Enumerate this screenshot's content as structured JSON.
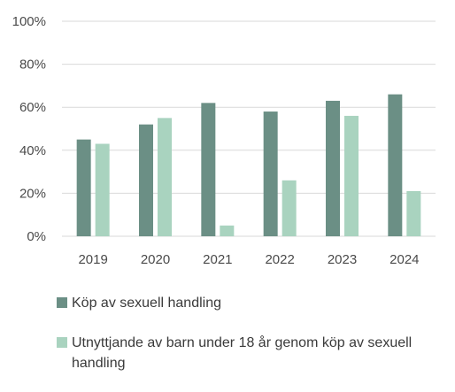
{
  "chart_data": {
    "type": "bar",
    "categories": [
      "2019",
      "2020",
      "2021",
      "2022",
      "2023",
      "2024"
    ],
    "series": [
      {
        "name": "Köp av sexuell handling",
        "values": [
          45,
          52,
          62,
          58,
          63,
          66
        ],
        "color": "#6b8f85"
      },
      {
        "name": "Utnyttjande av barn under 18 år genom köp av sexuell handling",
        "values": [
          43,
          55,
          5,
          26,
          56,
          21
        ],
        "color": "#a9d3bf"
      }
    ],
    "yticks": [
      "0%",
      "20%",
      "40%",
      "60%",
      "80%",
      "100%"
    ],
    "ylim": [
      0,
      100
    ],
    "grid": true,
    "legend_position": "bottom",
    "gridline_color": "#d9d9d9"
  }
}
